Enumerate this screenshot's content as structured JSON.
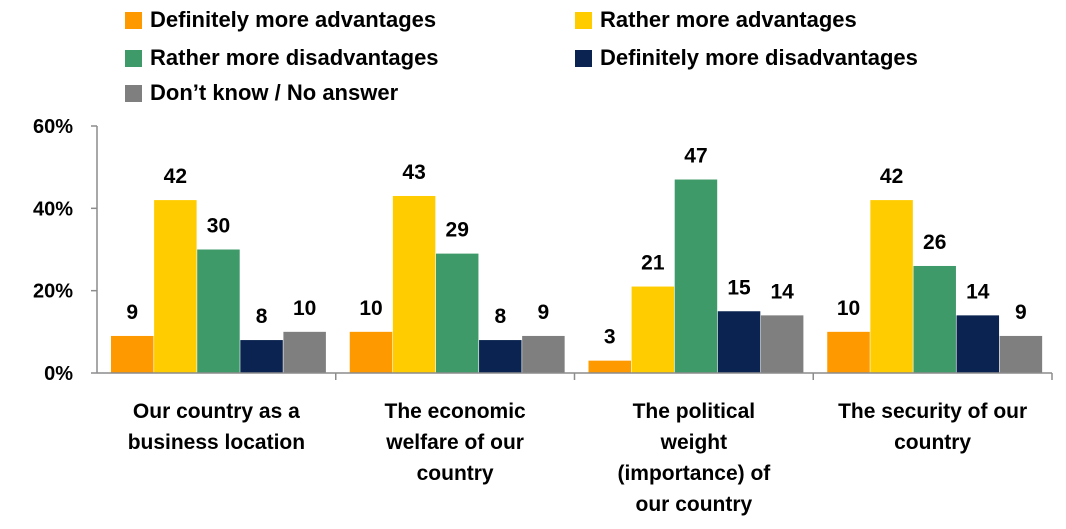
{
  "chart_data": {
    "type": "bar",
    "title": "",
    "xlabel": "",
    "ylabel": "",
    "ylim": [
      0,
      60
    ],
    "yticks": [
      "0%",
      "20%",
      "40%",
      "60%"
    ],
    "grid": false,
    "legend_position": "top",
    "categories": [
      [
        "Our country as a",
        "business location"
      ],
      [
        "The economic",
        "welfare of our",
        "country"
      ],
      [
        "The political",
        "weight",
        "(importance) of",
        "our country"
      ],
      [
        "The security of our",
        "country"
      ]
    ],
    "series": [
      {
        "name": "Definitely more advantages",
        "color": "#FF9900",
        "values": [
          9,
          10,
          3,
          10
        ]
      },
      {
        "name": "Rather more advantages",
        "color": "#FFCC00",
        "values": [
          42,
          43,
          21,
          42
        ]
      },
      {
        "name": "Rather more disadvantages",
        "color": "#3F9A69",
        "values": [
          30,
          29,
          47,
          26
        ]
      },
      {
        "name": "Definitely more disadvantages",
        "color": "#0B2350",
        "values": [
          8,
          8,
          15,
          14
        ]
      },
      {
        "name": "Don’t know / No answer",
        "color": "#7F7F7F",
        "values": [
          10,
          9,
          14,
          9
        ]
      }
    ]
  }
}
